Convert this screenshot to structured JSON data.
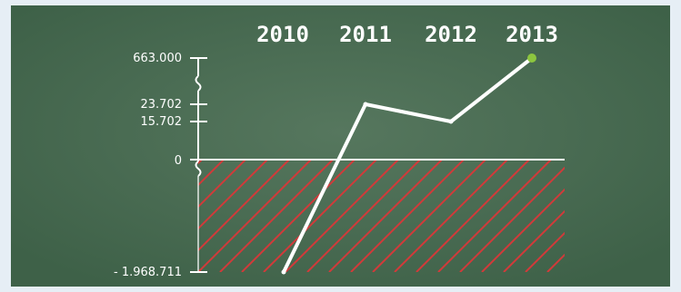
{
  "chart_data": {
    "type": "line",
    "x": [
      "2010",
      "2011",
      "2012",
      "2013"
    ],
    "series": [
      {
        "values": [
          -1968711,
          23702,
          15702,
          663000
        ]
      }
    ],
    "yticks": [
      "663.000",
      "23.702",
      "15.702",
      "0",
      "- 1.968.711"
    ],
    "axis_breaks": "between 663.000 and 23.702; below 0",
    "negative_region": "red diagonal hatching",
    "grid": false,
    "legend": "none"
  },
  "colors": {
    "board": "#3e6148",
    "chalk": "#ffffff",
    "hatch": "#d23a3a",
    "endpoint": "#8dc63f",
    "frame": "#e6eef5"
  }
}
